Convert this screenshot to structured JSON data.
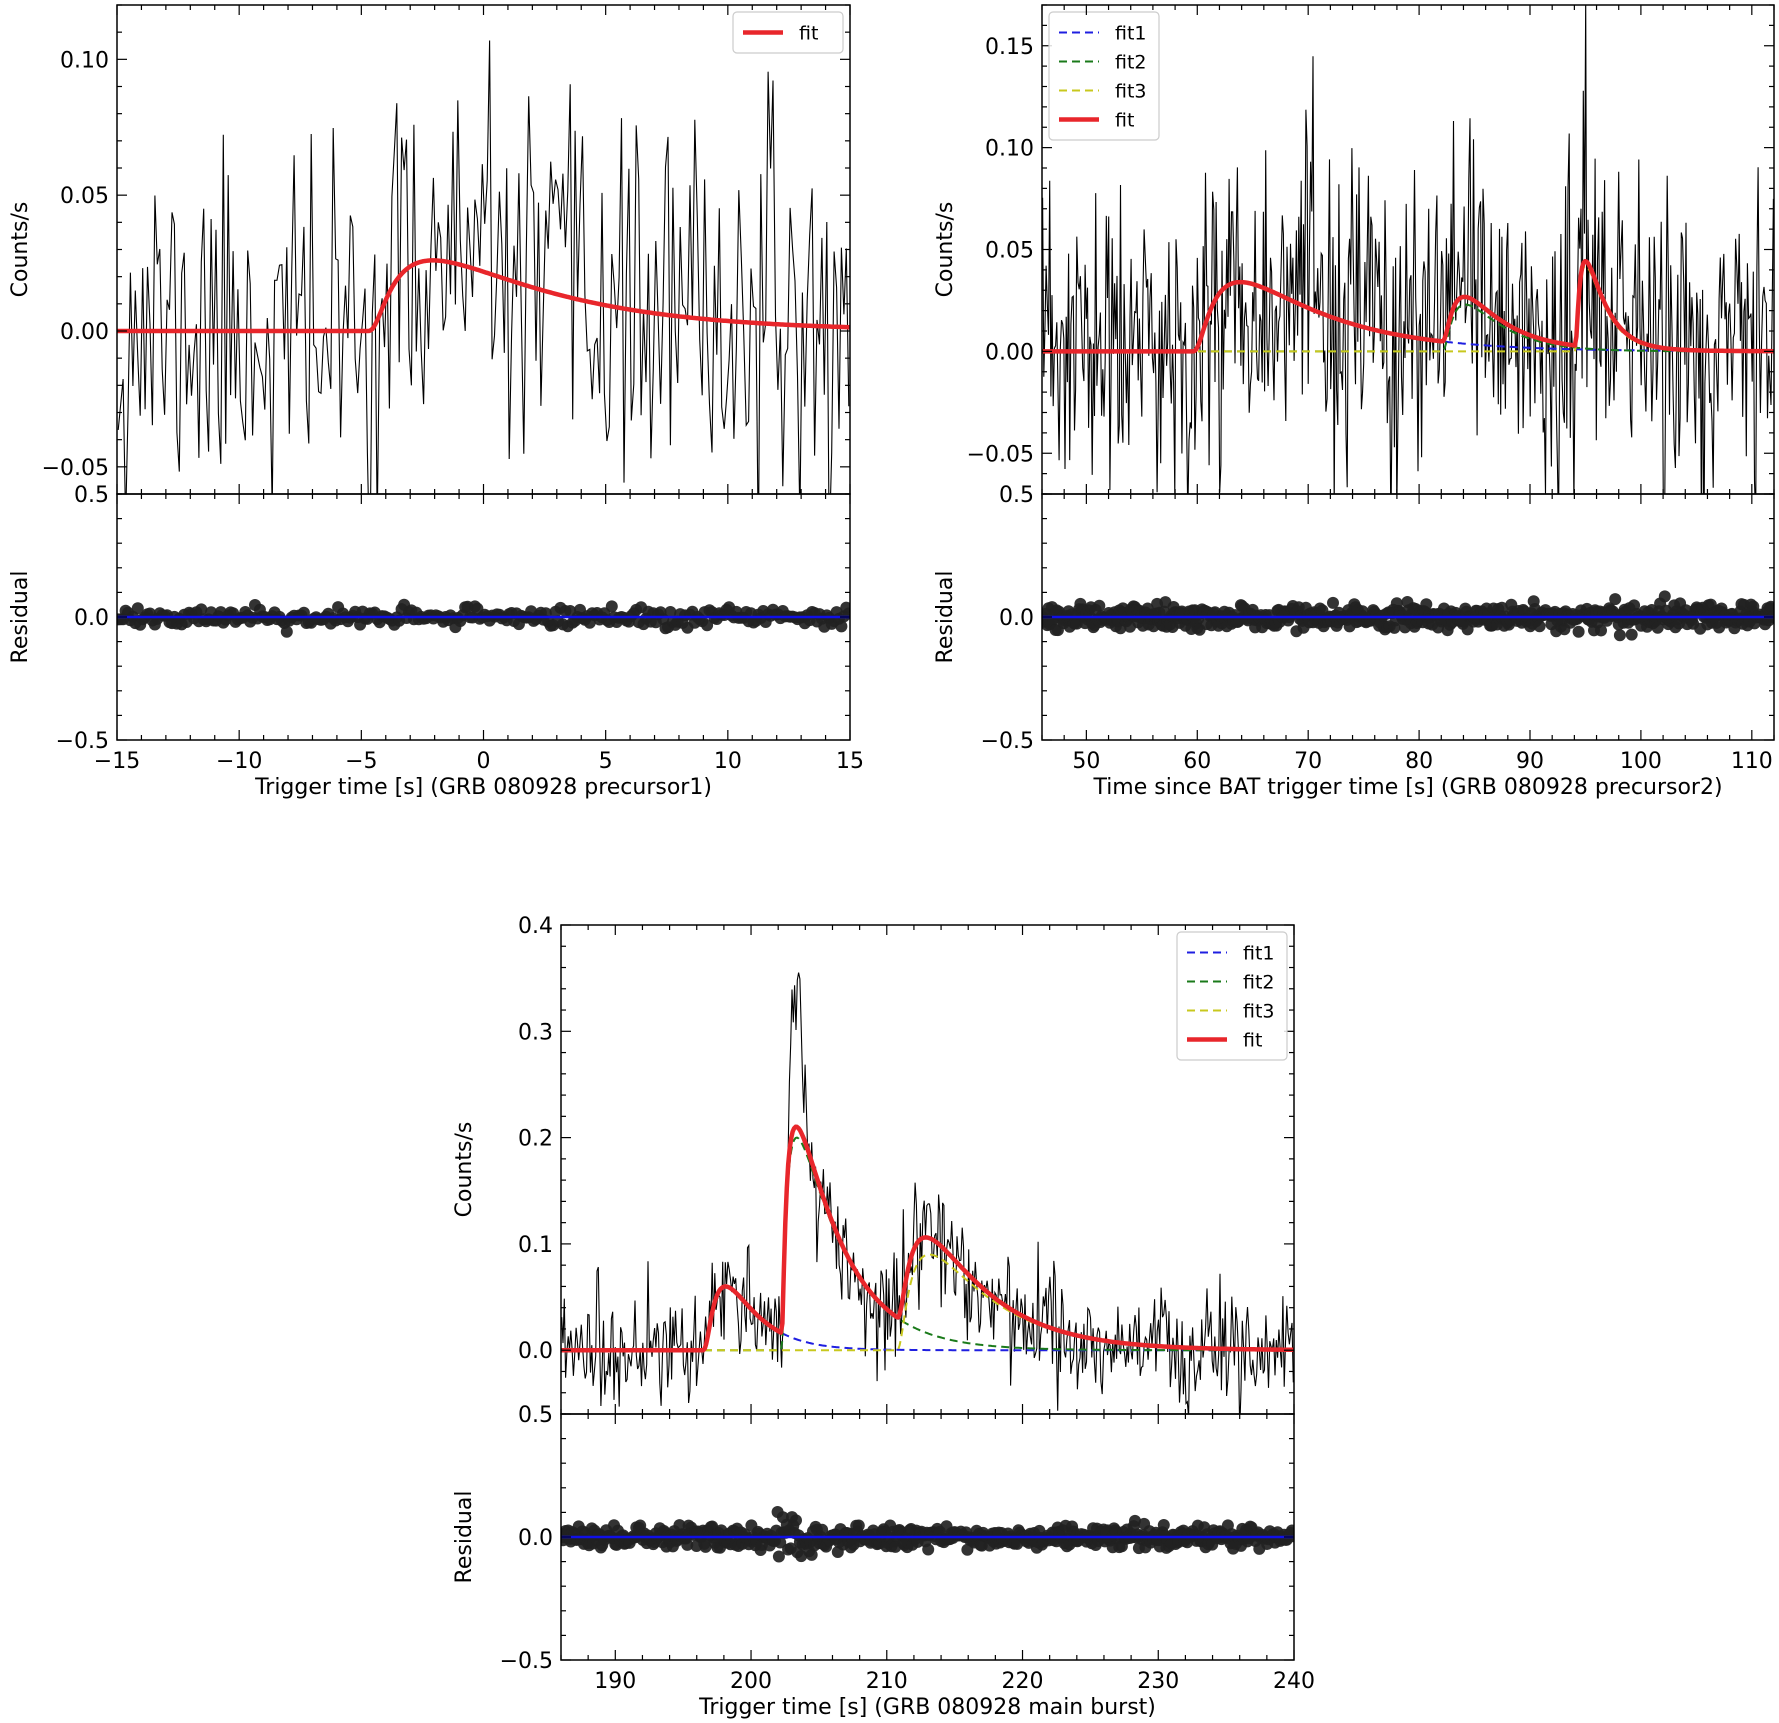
{
  "figure": {
    "panels": [
      "p1",
      "p2",
      "p3"
    ]
  },
  "chart_data": [
    {
      "id": "p1",
      "type": "line",
      "xlabel": "Trigger time [s] (GRB 080928 precursor1)",
      "ylabel_top": "Counts/s",
      "ylabel_bottom": "Residual",
      "xlim": [
        -15,
        15
      ],
      "ylim_top": [
        -0.06,
        0.12
      ],
      "ylim_bottom": [
        -0.5,
        0.5
      ],
      "xticks": [
        -15,
        -10,
        -5,
        0,
        5,
        10,
        15
      ],
      "xtick_labels": [
        "−15",
        "−10",
        "−5",
        "0",
        "5",
        "10",
        "15"
      ],
      "yticks_top": [
        -0.05,
        0.0,
        0.05,
        0.1
      ],
      "ytick_labels_top": [
        "−0.05",
        "0.00",
        "0.05",
        "0.10"
      ],
      "yticks_bottom": [
        -0.5,
        0.0,
        0.5
      ],
      "ytick_labels_bottom": [
        "−0.5",
        "0.0",
        "0.5"
      ],
      "noise_sd": 0.032,
      "n_points": 300,
      "seed": 11,
      "fit_components": [
        {
          "name": "fit",
          "amp": 0.026,
          "t0": -4.9,
          "tau_rise": 1.6,
          "tau_decay": 5.0,
          "color": "#e8262b",
          "dashed": false
        }
      ],
      "legend": [
        {
          "label": "fit",
          "color": "#e8262b",
          "dashed": false,
          "thick": true
        }
      ],
      "legend_position": "top-right",
      "residual_sd": 0.02
    },
    {
      "id": "p2",
      "type": "line",
      "xlabel": "Time since BAT trigger time [s] (GRB 080928 precursor2)",
      "ylabel_top": "Counts/s",
      "ylabel_bottom": "Residual",
      "xlim": [
        46,
        112
      ],
      "ylim_top": [
        -0.07,
        0.17
      ],
      "ylim_bottom": [
        -0.5,
        0.5
      ],
      "xticks": [
        50,
        60,
        70,
        80,
        90,
        100,
        110
      ],
      "xtick_labels": [
        "50",
        "60",
        "70",
        "80",
        "90",
        "100",
        "110"
      ],
      "yticks_top": [
        -0.05,
        0.0,
        0.05,
        0.1,
        0.15
      ],
      "ytick_labels_top": [
        "−0.05",
        "0.00",
        "0.05",
        "0.10",
        "0.15"
      ],
      "yticks_bottom": [
        -0.5,
        0.0,
        0.5
      ],
      "ytick_labels_bottom": [
        "−0.5",
        "0.0",
        "0.5"
      ],
      "noise_sd": 0.038,
      "n_points": 620,
      "seed": 23,
      "fit_components": [
        {
          "name": "fit1",
          "amp": 0.034,
          "t0": 59.3,
          "tau_rise": 2.8,
          "tau_decay": 7.5,
          "color": "#1f1fe0",
          "dashed": true
        },
        {
          "name": "fit2",
          "amp": 0.023,
          "t0": 81.9,
          "tau_rise": 1.6,
          "tau_decay": 3.2,
          "color": "#1a7a1a",
          "dashed": true
        },
        {
          "name": "fit3",
          "amp": 0.042,
          "t0": 94.0,
          "tau_rise": 0.6,
          "tau_decay": 1.7,
          "color": "#c8c81e",
          "dashed": true
        }
      ],
      "legend": [
        {
          "label": "fit1",
          "color": "#1f1fe0",
          "dashed": true,
          "thick": false
        },
        {
          "label": "fit2",
          "color": "#1a7a1a",
          "dashed": true,
          "thick": false
        },
        {
          "label": "fit3",
          "color": "#c8c81e",
          "dashed": true,
          "thick": false
        },
        {
          "label": "fit",
          "color": "#e8262b",
          "dashed": false,
          "thick": true
        }
      ],
      "legend_position": "top-left",
      "residual_sd": 0.026
    },
    {
      "id": "p3",
      "type": "line",
      "xlabel": "Trigger time [s] (GRB 080928 main burst)",
      "ylabel_top": "Counts/s",
      "ylabel_bottom": "Residual",
      "xlim": [
        186,
        240
      ],
      "ylim_top": [
        -0.06,
        0.4
      ],
      "ylim_bottom": [
        -0.5,
        0.5
      ],
      "xticks": [
        190,
        200,
        210,
        220,
        230,
        240
      ],
      "xtick_labels": [
        "190",
        "200",
        "210",
        "220",
        "230",
        "240"
      ],
      "yticks_top": [
        0.0,
        0.1,
        0.2,
        0.3,
        0.4
      ],
      "ytick_labels_top": [
        "0.0",
        "0.1",
        "0.2",
        "0.3",
        "0.4"
      ],
      "yticks_bottom": [
        -0.5,
        0.0,
        0.5
      ],
      "ytick_labels_bottom": [
        "−0.5",
        "0.0",
        "0.5"
      ],
      "noise_sd": 0.027,
      "n_points": 560,
      "seed": 37,
      "fit_components": [
        {
          "name": "fit1",
          "amp": 0.06,
          "t0": 196.3,
          "tau_rise": 1.5,
          "tau_decay": 2.2,
          "color": "#1f1fe0",
          "dashed": true
        },
        {
          "name": "fit2",
          "amp": 0.2,
          "t0": 202.2,
          "tau_rise": 0.4,
          "tau_decay": 3.4,
          "color": "#1a7a1a",
          "dashed": true
        },
        {
          "name": "fit3",
          "amp": 0.09,
          "t0": 210.6,
          "tau_rise": 1.4,
          "tau_decay": 4.6,
          "color": "#c8c81e",
          "dashed": true
        }
      ],
      "spike": {
        "t": 203.3,
        "amp": 0.15,
        "width": 0.45
      },
      "legend": [
        {
          "label": "fit1",
          "color": "#1f1fe0",
          "dashed": true,
          "thick": false
        },
        {
          "label": "fit2",
          "color": "#1a7a1a",
          "dashed": true,
          "thick": false
        },
        {
          "label": "fit3",
          "color": "#c8c81e",
          "dashed": true,
          "thick": false
        },
        {
          "label": "fit",
          "color": "#e8262b",
          "dashed": false,
          "thick": true
        }
      ],
      "legend_position": "top-right",
      "residual_sd": 0.022
    }
  ]
}
